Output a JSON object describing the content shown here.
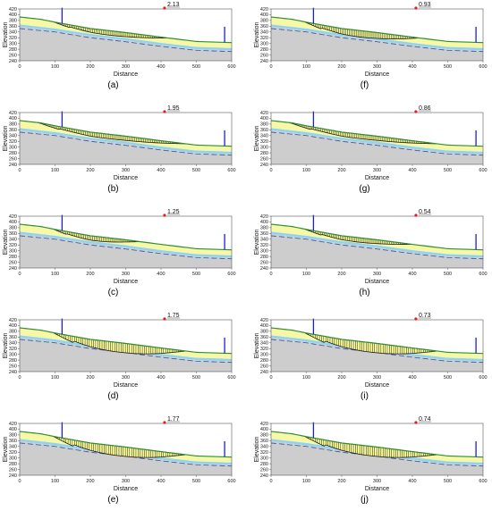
{
  "figure": {
    "panel_ids": [
      "a",
      "b",
      "c",
      "d",
      "e",
      "f",
      "g",
      "h",
      "i",
      "j"
    ]
  },
  "colors": {
    "bedrock": "#cdcdcd",
    "water_layer": "#8fd3ee",
    "soil_layer": "#f7f7a8",
    "surface_line": "#2f8f2f",
    "slip_mass": "#ffff99",
    "slip_lines": "#1a1a1a",
    "piezometric_line": "#3050b0",
    "anchor_marker": "#1f1fd0",
    "fs_marker": "#e02020"
  },
  "chart_data": [
    {
      "id": "a",
      "type": "area",
      "panel_label": "(a)",
      "xlabel": "Distance",
      "ylabel": "Elevation",
      "xlim": [
        0,
        600
      ],
      "ylim": [
        240,
        420
      ],
      "x_ticks": [
        "0",
        "100",
        "200",
        "300",
        "400",
        "500",
        "600"
      ],
      "y_ticks": [
        "240",
        "260",
        "280",
        "300",
        "320",
        "340",
        "360",
        "380",
        "400",
        "420"
      ],
      "factor_of_safety": "2.13",
      "slip_surface": {
        "x_start": 95,
        "x_end": 420,
        "depth": "shallow"
      }
    },
    {
      "id": "b",
      "type": "area",
      "panel_label": "(b)",
      "xlabel": "Distance",
      "ylabel": "Elevation",
      "xlim": [
        0,
        600
      ],
      "ylim": [
        240,
        420
      ],
      "x_ticks": [
        "0",
        "100",
        "200",
        "300",
        "400",
        "500",
        "600"
      ],
      "y_ticks": [
        "240",
        "260",
        "280",
        "300",
        "320",
        "340",
        "360",
        "380",
        "400",
        "420"
      ],
      "factor_of_safety": "1.95",
      "slip_surface": {
        "x_start": 50,
        "x_end": 470,
        "depth": "shallow"
      }
    },
    {
      "id": "c",
      "type": "area",
      "panel_label": "(c)",
      "xlabel": "Distance",
      "ylabel": "Elevation",
      "xlim": [
        0,
        600
      ],
      "ylim": [
        240,
        420
      ],
      "x_ticks": [
        "0",
        "100",
        "200",
        "300",
        "400",
        "500",
        "600"
      ],
      "y_ticks": [
        "240",
        "260",
        "280",
        "300",
        "320",
        "340",
        "360",
        "380",
        "400",
        "420"
      ],
      "factor_of_safety": "1.25",
      "slip_surface": {
        "x_start": 95,
        "x_end": 340,
        "depth": "shallow"
      }
    },
    {
      "id": "d",
      "type": "area",
      "panel_label": "(d)",
      "xlabel": "Distance",
      "ylabel": "Elevation",
      "xlim": [
        0,
        600
      ],
      "ylim": [
        240,
        420
      ],
      "x_ticks": [
        "0",
        "100",
        "200",
        "300",
        "400",
        "500",
        "600"
      ],
      "y_ticks": [
        "240",
        "260",
        "280",
        "300",
        "320",
        "340",
        "360",
        "380",
        "400",
        "420"
      ],
      "factor_of_safety": "1.75",
      "slip_surface": {
        "x_start": 95,
        "x_end": 470,
        "depth": "deep"
      }
    },
    {
      "id": "e",
      "type": "area",
      "panel_label": "(e)",
      "xlabel": "Distance",
      "ylabel": "Elevation",
      "xlim": [
        0,
        600
      ],
      "ylim": [
        240,
        420
      ],
      "x_ticks": [
        "0",
        "100",
        "200",
        "300",
        "400",
        "500",
        "600"
      ],
      "y_ticks": [
        "240",
        "260",
        "280",
        "300",
        "320",
        "340",
        "360",
        "380",
        "400",
        "420"
      ],
      "factor_of_safety": "1.77",
      "slip_surface": {
        "x_start": 95,
        "x_end": 470,
        "depth": "deep"
      }
    },
    {
      "id": "f",
      "type": "area",
      "panel_label": "(f)",
      "xlabel": "Distance",
      "ylabel": "Elevation",
      "xlim": [
        0,
        600
      ],
      "ylim": [
        240,
        420
      ],
      "x_ticks": [
        "0",
        "100",
        "200",
        "300",
        "400",
        "500",
        "600"
      ],
      "y_ticks": [
        "240",
        "260",
        "280",
        "300",
        "320",
        "340",
        "360",
        "380",
        "400",
        "420"
      ],
      "factor_of_safety": "0.93",
      "slip_surface": {
        "x_start": 95,
        "x_end": 420,
        "depth": "medium"
      }
    },
    {
      "id": "g",
      "type": "area",
      "panel_label": "(g)",
      "xlabel": "Distance",
      "ylabel": "Elevation",
      "xlim": [
        0,
        600
      ],
      "ylim": [
        240,
        420
      ],
      "x_ticks": [
        "0",
        "100",
        "200",
        "300",
        "400",
        "500",
        "600"
      ],
      "y_ticks": [
        "240",
        "260",
        "280",
        "300",
        "320",
        "340",
        "360",
        "380",
        "400",
        "420"
      ],
      "factor_of_safety": "0.86",
      "slip_surface": {
        "x_start": 50,
        "x_end": 470,
        "depth": "shallow"
      }
    },
    {
      "id": "h",
      "type": "area",
      "panel_label": "(h)",
      "xlabel": "Distance",
      "ylabel": "Elevation",
      "xlim": [
        0,
        600
      ],
      "ylim": [
        240,
        420
      ],
      "x_ticks": [
        "0",
        "100",
        "200",
        "300",
        "400",
        "500",
        "600"
      ],
      "y_ticks": [
        "240",
        "260",
        "280",
        "300",
        "320",
        "340",
        "360",
        "380",
        "400",
        "420"
      ],
      "factor_of_safety": "0.54",
      "slip_surface": {
        "x_start": 95,
        "x_end": 400,
        "depth": "shallow"
      }
    },
    {
      "id": "i",
      "type": "area",
      "panel_label": "(i)",
      "xlabel": "Distance",
      "ylabel": "Elevation",
      "xlim": [
        0,
        600
      ],
      "ylim": [
        240,
        420
      ],
      "x_ticks": [
        "0",
        "100",
        "200",
        "300",
        "400",
        "500",
        "600"
      ],
      "y_ticks": [
        "240",
        "260",
        "280",
        "300",
        "320",
        "340",
        "360",
        "380",
        "400",
        "420"
      ],
      "factor_of_safety": "0.73",
      "slip_surface": {
        "x_start": 95,
        "x_end": 470,
        "depth": "deep"
      }
    },
    {
      "id": "j",
      "type": "area",
      "panel_label": "(j)",
      "xlabel": "Distance",
      "ylabel": "Elevation",
      "xlim": [
        0,
        600
      ],
      "ylim": [
        240,
        420
      ],
      "x_ticks": [
        "0",
        "100",
        "200",
        "300",
        "400",
        "500",
        "600"
      ],
      "y_ticks": [
        "240",
        "260",
        "280",
        "300",
        "320",
        "340",
        "360",
        "380",
        "400",
        "420"
      ],
      "factor_of_safety": "0.74",
      "slip_surface": {
        "x_start": 95,
        "x_end": 470,
        "depth": "deep"
      }
    }
  ],
  "profile_data": {
    "ground_surface": [
      [
        0,
        392
      ],
      [
        60,
        384
      ],
      [
        100,
        374
      ],
      [
        200,
        352
      ],
      [
        300,
        338
      ],
      [
        400,
        322
      ],
      [
        500,
        307
      ],
      [
        600,
        303
      ]
    ],
    "water_top": [
      [
        0,
        366
      ],
      [
        100,
        352
      ],
      [
        200,
        333
      ],
      [
        300,
        319
      ],
      [
        400,
        302
      ],
      [
        500,
        288
      ],
      [
        600,
        284
      ]
    ],
    "bedrock_top": [
      [
        0,
        358
      ],
      [
        100,
        344
      ],
      [
        200,
        325
      ],
      [
        300,
        311
      ],
      [
        400,
        294
      ],
      [
        500,
        280
      ],
      [
        600,
        276
      ]
    ],
    "piezometric": [
      [
        0,
        352
      ],
      [
        100,
        340
      ],
      [
        200,
        320
      ],
      [
        300,
        306
      ],
      [
        400,
        290
      ],
      [
        500,
        276
      ],
      [
        600,
        272
      ]
    ],
    "anchors": [
      {
        "x": 120,
        "base": 370,
        "top": 418
      },
      {
        "x": 580,
        "base": 304,
        "top": 352
      }
    ],
    "fs_marker_x": 410,
    "fs_marker_y": 420
  }
}
